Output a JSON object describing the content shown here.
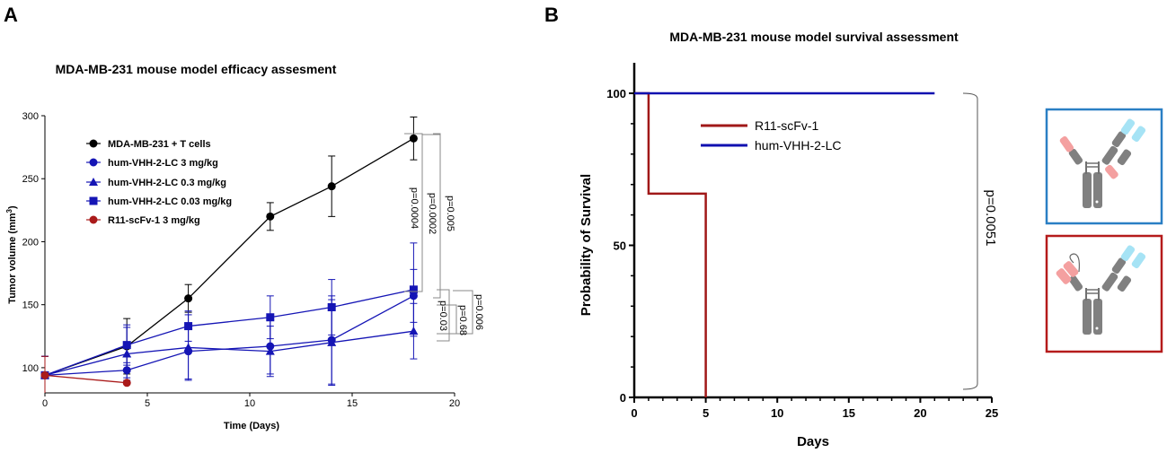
{
  "panels": {
    "a": "A",
    "b": "B"
  },
  "colors": {
    "black": "#000000",
    "blue": "#1515b5",
    "red": "#aa1a1a",
    "red_line": "#a01818",
    "blue_line": "#1010b0",
    "frame_blue": "#2a7fc4",
    "frame_red": "#b51b1b"
  },
  "chart_data": [
    {
      "type": "line",
      "title": "MDA-MB-231 mouse model efficacy assesment",
      "xlabel": "Time (Days)",
      "ylabel_main": "Tumor volume (mm",
      "ylabel_sup": "3",
      "ylabel_end": ")",
      "xlim": [
        0,
        20
      ],
      "ylim": [
        80,
        300
      ],
      "xticks": [
        0,
        5,
        10,
        15,
        20
      ],
      "yticks": [
        100,
        150,
        200,
        250,
        300
      ],
      "series": [
        {
          "name": "MDA-MB-231 + T cells",
          "color": "#000000",
          "marker": "circle",
          "x": [
            0,
            4,
            7,
            11,
            14,
            18
          ],
          "y": [
            94,
            117,
            155,
            220,
            244,
            282
          ],
          "err": [
            15,
            22,
            11,
            11,
            24,
            17
          ]
        },
        {
          "name": "hum-VHH-2-LC 3 mg/kg",
          "color": "#1515b5",
          "marker": "circle",
          "x": [
            0,
            4,
            7,
            11,
            14,
            18
          ],
          "y": [
            94,
            98,
            113,
            117,
            122,
            157
          ],
          "err": [
            15,
            6,
            22,
            22,
            35,
            21
          ]
        },
        {
          "name": "hum-VHH-2-LC 0.3 mg/kg",
          "color": "#1515b5",
          "marker": "triangle",
          "x": [
            0,
            4,
            7,
            11,
            14,
            18
          ],
          "y": [
            94,
            111,
            116,
            113,
            120,
            129
          ],
          "err": [
            15,
            21,
            26,
            20,
            34,
            22
          ]
        },
        {
          "name": "hum-VHH-2-LC 0.03 mg/kg",
          "color": "#1515b5",
          "marker": "square",
          "x": [
            0,
            4,
            7,
            11,
            14,
            18
          ],
          "y": [
            94,
            118,
            133,
            140,
            148,
            162
          ],
          "err": [
            15,
            16,
            12,
            17,
            22,
            37
          ]
        },
        {
          "name": "R11-scFv-1 3 mg/kg",
          "color": "#aa1a1a",
          "marker": "circle",
          "x": [
            0,
            4
          ],
          "y": [
            94,
            88
          ],
          "err": [
            15,
            0
          ]
        }
      ],
      "annotations": [
        "p=0.0004",
        "p=0.0002",
        "p=0.005",
        "p=0.03",
        "p=0.68",
        "p=0.006"
      ]
    },
    {
      "type": "line",
      "title": "MDA-MB-231 mouse model survival assessment",
      "xlabel": "Days",
      "ylabel": "Probability of Survival",
      "xlim": [
        0,
        25
      ],
      "ylim": [
        0,
        100
      ],
      "xticks": [
        0,
        5,
        10,
        15,
        20,
        25
      ],
      "yticks": [
        0,
        50,
        100
      ],
      "series": [
        {
          "name": "R11-scFv-1",
          "color": "#a01818",
          "step": true,
          "x": [
            0,
            1,
            1,
            5,
            5
          ],
          "y": [
            100,
            100,
            67,
            67,
            0
          ]
        },
        {
          "name": "hum-VHH-2-LC",
          "color": "#1010b0",
          "step": true,
          "x": [
            0,
            21
          ],
          "y": [
            100,
            100
          ]
        }
      ],
      "annotations": [
        "p=0.0051"
      ]
    }
  ]
}
